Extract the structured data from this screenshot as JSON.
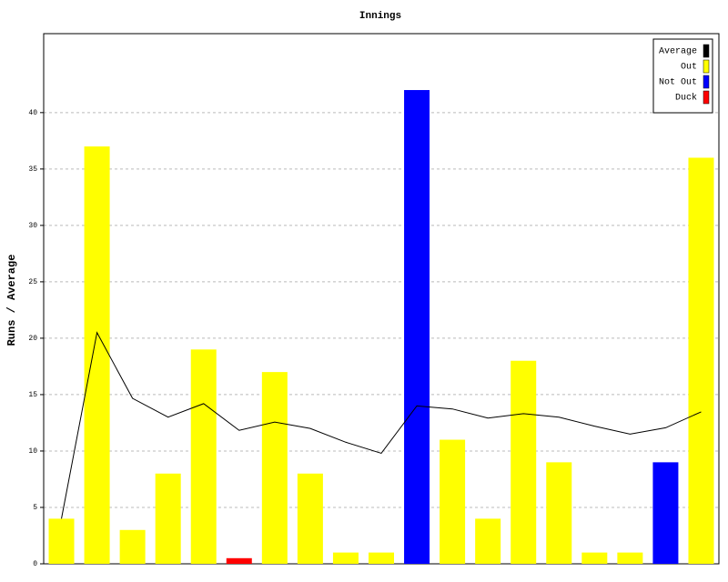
{
  "chart_data": {
    "type": "bar",
    "title": "Innings",
    "y_label": "Runs / Average",
    "categories": [
      null,
      null,
      null,
      null,
      null,
      null,
      null,
      null,
      null,
      null,
      null,
      null,
      null,
      null,
      null,
      null,
      null,
      null,
      null
    ],
    "series": [
      {
        "name": "Average",
        "color": "#000000",
        "kind": "line",
        "values": [
          4,
          20.5,
          14.67,
          13,
          14.2,
          11.83,
          12.57,
          12,
          10.78,
          9.8,
          14,
          13.73,
          12.92,
          13.31,
          13,
          12.2,
          11.5,
          12.06,
          13.47
        ]
      },
      {
        "name": "Out",
        "color": "#ffff00",
        "kind": "bar",
        "values": [
          4,
          37,
          3,
          8,
          19,
          null,
          17,
          8,
          1,
          1,
          null,
          11,
          4,
          18,
          9,
          1,
          1,
          null,
          36
        ]
      },
      {
        "name": "Not Out",
        "color": "#0000ff",
        "kind": "bar",
        "values": [
          null,
          null,
          null,
          null,
          null,
          null,
          null,
          null,
          null,
          null,
          42,
          null,
          null,
          null,
          null,
          null,
          null,
          9,
          null
        ]
      },
      {
        "name": "Duck",
        "color": "#ff0000",
        "kind": "bar",
        "values": [
          null,
          null,
          null,
          null,
          null,
          0.5,
          null,
          null,
          null,
          null,
          null,
          null,
          null,
          null,
          null,
          null,
          null,
          null,
          null
        ]
      }
    ],
    "ylim": [
      0,
      47
    ],
    "yticks": [
      0,
      5,
      10,
      15,
      20,
      25,
      30,
      35,
      40
    ],
    "grid": true,
    "legend": "top-right"
  }
}
